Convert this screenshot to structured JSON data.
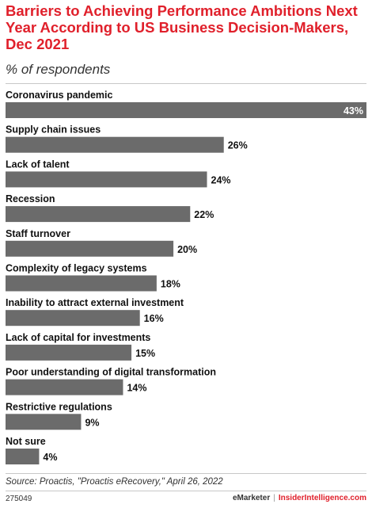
{
  "chart_data": {
    "type": "bar",
    "orientation": "horizontal",
    "title": "Barriers to Achieving Performance Ambitions Next Year According to US Business Decision-Makers, Dec 2021",
    "subtitle": "% of respondents",
    "categories": [
      "Coronavirus pandemic",
      "Supply chain issues",
      "Lack of talent",
      "Recession",
      "Staff turnover",
      "Complexity of legacy systems",
      "Inability to attract external investment",
      "Lack of capital for investments",
      "Poor understanding of digital transformation",
      "Restrictive regulations",
      "Not sure"
    ],
    "values": [
      43,
      26,
      24,
      22,
      20,
      18,
      16,
      15,
      14,
      9,
      4
    ],
    "value_labels": [
      "43%",
      "26%",
      "24%",
      "22%",
      "20%",
      "18%",
      "16%",
      "15%",
      "14%",
      "9%",
      "4%"
    ],
    "xlim": [
      0,
      43
    ],
    "grid": false,
    "bar_color": "#6b6b6b"
  },
  "source": "Source: Proactis, \"Proactis eRecovery,\" April 26, 2022",
  "footer": {
    "chart_id": "275049",
    "brand": "eMarketer",
    "separator": "|",
    "brand2": "InsiderIntelligence.com"
  },
  "colors": {
    "title": "#e0202b",
    "bar": "#6b6b6b",
    "text": "#111111"
  }
}
